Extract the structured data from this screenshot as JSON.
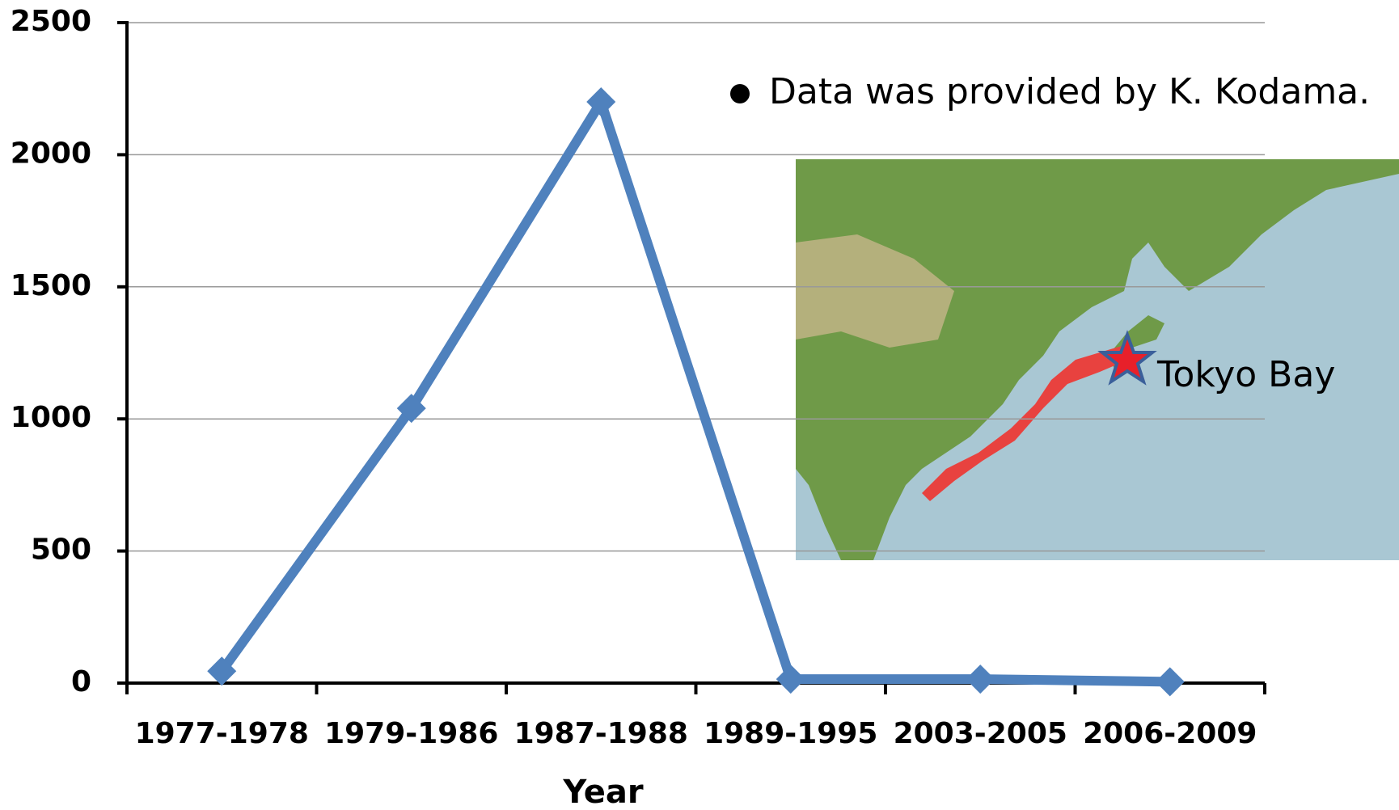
{
  "chart_data": {
    "type": "line",
    "categories": [
      "1977-1978",
      "1979-1986",
      "1987-1988",
      "1989-1995",
      "2003-2005",
      "2006-2009"
    ],
    "values": [
      45,
      1040,
      2200,
      15,
      15,
      5
    ],
    "color": "#4f81bd",
    "xlabel": "Year",
    "ylim": [
      0,
      2500
    ],
    "yticks": [
      0,
      500,
      1000,
      1500,
      2000,
      2500
    ],
    "grid": true,
    "annotations": [
      "Data was provided by K. Kodama.",
      "Tokyo Bay"
    ]
  }
}
